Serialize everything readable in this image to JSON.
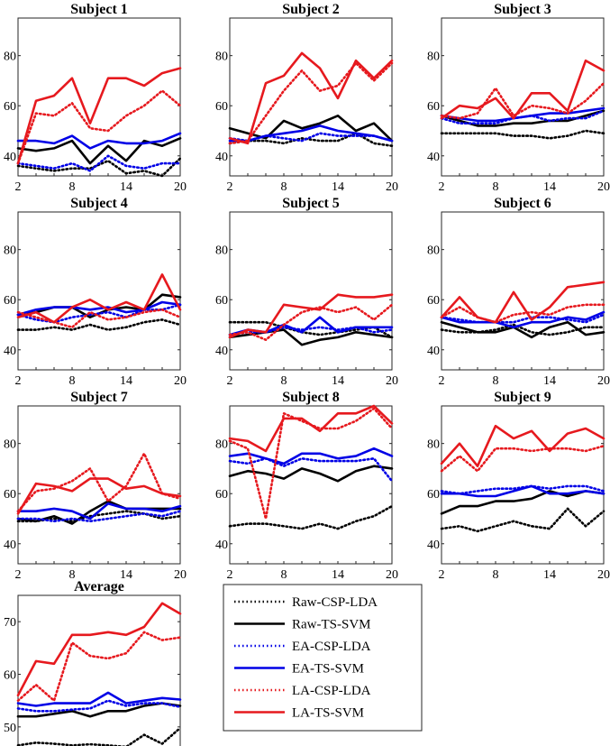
{
  "chart_data": {
    "type": "line",
    "x_ticks": [
      2,
      8,
      14,
      20
    ],
    "x_values": [
      2,
      4,
      6,
      8,
      10,
      12,
      14,
      16,
      18,
      20
    ],
    "legend": {
      "placement": "bottom-middle",
      "entries": [
        "Raw-CSP-LDA",
        "Raw-TS-SVM",
        "EA-CSP-LDA",
        "EA-TS-SVM",
        "LA-CSP-LDA",
        "LA-TS-SVM"
      ]
    },
    "styles": {
      "Raw-CSP-LDA": {
        "color": "#000000",
        "dash": "dotted"
      },
      "Raw-TS-SVM": {
        "color": "#000000",
        "dash": "solid"
      },
      "EA-CSP-LDA": {
        "color": "#0000e6",
        "dash": "dotted"
      },
      "EA-TS-SVM": {
        "color": "#0000e6",
        "dash": "solid"
      },
      "LA-CSP-LDA": {
        "color": "#e6191e",
        "dash": "dotted"
      },
      "LA-TS-SVM": {
        "color": "#e6191e",
        "dash": "solid"
      }
    },
    "panels": [
      {
        "title": "Subject 1",
        "ylim": [
          32,
          95
        ],
        "yticks": [
          40,
          60,
          80
        ],
        "series": {
          "Raw-CSP-LDA": [
            36,
            35,
            34,
            35,
            35,
            38,
            33,
            34,
            32,
            39
          ],
          "Raw-TS-SVM": [
            43,
            42,
            43,
            46,
            37,
            44,
            38,
            46,
            44,
            47
          ],
          "EA-CSP-LDA": [
            37,
            36,
            35,
            37,
            34,
            40,
            36,
            35,
            37,
            37
          ],
          "EA-TS-SVM": [
            46,
            46,
            45,
            48,
            43,
            46,
            45,
            45,
            46,
            49
          ],
          "LA-CSP-LDA": [
            37,
            57,
            56,
            61,
            51,
            50,
            56,
            60,
            66,
            60
          ],
          "LA-TS-SVM": [
            37,
            62,
            64,
            71,
            53,
            71,
            71,
            68,
            73,
            75
          ]
        }
      },
      {
        "title": "Subject 2",
        "ylim": [
          32,
          95
        ],
        "yticks": [
          40,
          60,
          80
        ],
        "series": {
          "Raw-CSP-LDA": [
            45,
            46,
            46,
            45,
            47,
            46,
            46,
            49,
            45,
            44
          ],
          "Raw-TS-SVM": [
            51,
            49,
            47,
            54,
            51,
            53,
            56,
            50,
            53,
            46
          ],
          "EA-CSP-LDA": [
            47,
            46,
            48,
            47,
            46,
            49,
            48,
            48,
            48,
            46
          ],
          "EA-TS-SVM": [
            46,
            46,
            48,
            49,
            50,
            52,
            50,
            49,
            48,
            46
          ],
          "LA-CSP-LDA": [
            45,
            46,
            56,
            66,
            74,
            66,
            68,
            77,
            70,
            77
          ],
          "LA-TS-SVM": [
            47,
            45,
            69,
            72,
            81,
            75,
            63,
            78,
            71,
            78
          ]
        }
      },
      {
        "title": "Subject 3",
        "ylim": [
          32,
          95
        ],
        "yticks": [
          40,
          60,
          80
        ],
        "series": {
          "Raw-CSP-LDA": [
            49,
            49,
            49,
            49,
            48,
            48,
            47,
            48,
            50,
            49
          ],
          "Raw-TS-SVM": [
            56,
            54,
            52,
            52,
            53,
            53,
            54,
            54,
            56,
            58
          ],
          "EA-CSP-LDA": [
            55,
            53,
            53,
            53,
            55,
            56,
            54,
            55,
            55,
            58
          ],
          "EA-TS-SVM": [
            56,
            55,
            54,
            54,
            55,
            56,
            57,
            57,
            58,
            59
          ],
          "LA-CSP-LDA": [
            56,
            55,
            57,
            67,
            56,
            60,
            59,
            57,
            62,
            69
          ],
          "LA-TS-SVM": [
            55,
            60,
            59,
            63,
            55,
            65,
            65,
            58,
            78,
            74
          ]
        }
      },
      {
        "title": "Subject 4",
        "ylim": [
          32,
          95
        ],
        "yticks": [
          40,
          60,
          80
        ],
        "series": {
          "Raw-CSP-LDA": [
            48,
            48,
            49,
            48,
            50,
            48,
            49,
            51,
            52,
            50
          ],
          "Raw-TS-SVM": [
            54,
            55,
            57,
            57,
            53,
            56,
            57,
            56,
            62,
            61
          ],
          "EA-CSP-LDA": [
            54,
            52,
            51,
            53,
            54,
            55,
            53,
            56,
            56,
            58
          ],
          "EA-TS-SVM": [
            54,
            56,
            57,
            57,
            56,
            57,
            55,
            56,
            59,
            58
          ],
          "LA-CSP-LDA": [
            55,
            53,
            51,
            49,
            55,
            52,
            53,
            55,
            56,
            53
          ],
          "LA-TS-SVM": [
            53,
            55,
            51,
            57,
            60,
            56,
            59,
            56,
            70,
            56
          ]
        }
      },
      {
        "title": "Subject 5",
        "ylim": [
          32,
          95
        ],
        "yticks": [
          40,
          60,
          80
        ],
        "series": {
          "Raw-CSP-LDA": [
            51,
            51,
            51,
            49,
            47,
            46,
            47,
            48,
            49,
            45
          ],
          "Raw-TS-SVM": [
            45,
            46,
            47,
            48,
            42,
            44,
            45,
            47,
            46,
            45
          ],
          "EA-CSP-LDA": [
            46,
            47,
            47,
            49,
            48,
            49,
            48,
            49,
            47,
            48
          ],
          "EA-TS-SVM": [
            46,
            48,
            47,
            50,
            47,
            53,
            47,
            49,
            49,
            49
          ],
          "LA-CSP-LDA": [
            46,
            47,
            44,
            50,
            55,
            57,
            55,
            57,
            52,
            58
          ],
          "LA-TS-SVM": [
            45,
            48,
            47,
            58,
            57,
            56,
            62,
            61,
            61,
            62
          ]
        }
      },
      {
        "title": "Subject 6",
        "ylim": [
          32,
          95
        ],
        "yticks": [
          40,
          60,
          80
        ],
        "series": {
          "Raw-CSP-LDA": [
            48,
            47,
            47,
            48,
            50,
            47,
            46,
            47,
            49,
            49
          ],
          "Raw-TS-SVM": [
            51,
            49,
            47,
            47,
            49,
            45,
            49,
            51,
            46,
            47
          ],
          "EA-CSP-LDA": [
            53,
            52,
            51,
            51,
            51,
            53,
            53,
            52,
            51,
            54
          ],
          "EA-TS-SVM": [
            53,
            51,
            51,
            51,
            49,
            51,
            51,
            53,
            52,
            55
          ],
          "LA-CSP-LDA": [
            53,
            57,
            53,
            51,
            54,
            55,
            54,
            57,
            58,
            58
          ],
          "LA-TS-SVM": [
            53,
            61,
            53,
            51,
            63,
            52,
            57,
            65,
            66,
            67
          ]
        }
      },
      {
        "title": "Subject 7",
        "ylim": [
          32,
          95
        ],
        "yticks": [
          40,
          60,
          80
        ],
        "series": {
          "Raw-CSP-LDA": [
            49,
            49,
            50,
            49,
            51,
            52,
            53,
            52,
            50,
            51
          ],
          "Raw-TS-SVM": [
            50,
            49,
            51,
            48,
            53,
            57,
            54,
            54,
            54,
            54
          ],
          "EA-CSP-LDA": [
            50,
            50,
            49,
            50,
            49,
            50,
            51,
            52,
            51,
            53
          ],
          "EA-TS-SVM": [
            53,
            53,
            54,
            53,
            50,
            56,
            54,
            54,
            53,
            55
          ],
          "LA-CSP-LDA": [
            53,
            61,
            62,
            65,
            70,
            57,
            63,
            76,
            60,
            58
          ],
          "LA-TS-SVM": [
            52,
            64,
            63,
            61,
            66,
            66,
            62,
            63,
            60,
            59
          ]
        }
      },
      {
        "title": "Subject 8",
        "ylim": [
          32,
          95
        ],
        "yticks": [
          40,
          60,
          80
        ],
        "series": {
          "Raw-CSP-LDA": [
            47,
            48,
            48,
            47,
            46,
            48,
            46,
            49,
            51,
            55
          ],
          "Raw-TS-SVM": [
            67,
            69,
            68,
            66,
            70,
            68,
            65,
            69,
            71,
            70
          ],
          "EA-CSP-LDA": [
            73,
            72,
            74,
            71,
            74,
            73,
            73,
            73,
            74,
            65
          ],
          "EA-TS-SVM": [
            75,
            76,
            74,
            72,
            76,
            76,
            74,
            75,
            78,
            75
          ],
          "LA-CSP-LDA": [
            81,
            78,
            50,
            92,
            89,
            86,
            86,
            89,
            94,
            86
          ],
          "LA-TS-SVM": [
            82,
            81,
            77,
            90,
            90,
            85,
            92,
            92,
            95,
            88
          ]
        }
      },
      {
        "title": "Subject 9",
        "ylim": [
          32,
          95
        ],
        "yticks": [
          40,
          60,
          80
        ],
        "series": {
          "Raw-CSP-LDA": [
            46,
            47,
            45,
            47,
            49,
            47,
            46,
            54,
            47,
            53
          ],
          "Raw-TS-SVM": [
            52,
            55,
            55,
            57,
            57,
            58,
            61,
            59,
            61,
            60
          ],
          "EA-CSP-LDA": [
            61,
            60,
            61,
            62,
            62,
            63,
            62,
            63,
            63,
            61
          ],
          "EA-TS-SVM": [
            60,
            60,
            59,
            59,
            61,
            63,
            60,
            60,
            61,
            60
          ],
          "LA-CSP-LDA": [
            69,
            75,
            69,
            78,
            78,
            77,
            78,
            78,
            77,
            79
          ],
          "LA-TS-SVM": [
            72,
            80,
            71,
            87,
            82,
            85,
            77,
            84,
            86,
            82
          ]
        }
      },
      {
        "title": "Average",
        "ylim": [
          45,
          75
        ],
        "yticks": [
          50,
          60,
          70
        ],
        "series": {
          "Raw-CSP-LDA": [
            46.5,
            47.0,
            46.8,
            46.5,
            46.7,
            46.5,
            46.2,
            48.5,
            46.8,
            49.8
          ],
          "Raw-TS-SVM": [
            52.0,
            52.0,
            52.5,
            53.0,
            52.0,
            53.0,
            53.0,
            54.0,
            54.5,
            54.0
          ],
          "EA-CSP-LDA": [
            53.5,
            53.0,
            53.0,
            53.3,
            53.5,
            55.0,
            54.0,
            54.5,
            54.5,
            53.8
          ],
          "EA-TS-SVM": [
            54.5,
            54.0,
            54.5,
            54.5,
            54.5,
            56.5,
            54.5,
            55.0,
            55.5,
            55.2
          ],
          "LA-CSP-LDA": [
            55.0,
            58.0,
            55.0,
            66.0,
            63.5,
            63.0,
            64.0,
            68.0,
            66.5,
            67.0
          ],
          "LA-TS-SVM": [
            56.0,
            62.5,
            62.0,
            67.5,
            67.5,
            68.0,
            67.5,
            69.0,
            73.5,
            71.5
          ]
        }
      }
    ]
  }
}
